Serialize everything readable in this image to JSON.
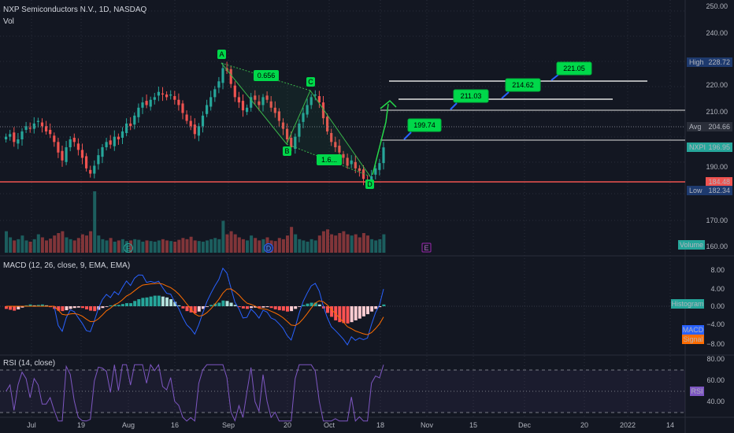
{
  "colors": {
    "bg": "#131722",
    "up": "#26a69a",
    "down": "#ef5350",
    "macd": "#2962ff",
    "signal": "#ff6d00",
    "rsi": "#7e57c2",
    "green_tag": "#00d84a"
  },
  "legend": {
    "title": "NXP Semiconductors N.V., 1D, NASDAQ",
    "vol": "Vol",
    "macd": "MACD (12, 26, close, 9, EMA, EMA)",
    "rsi": "RSI (14, close)"
  },
  "price_axis": {
    "ticks": [
      "250.00",
      "240.00",
      "230.00",
      "220.00",
      "210.00",
      "200.00",
      "190.00",
      "180.00",
      "170.00",
      "160.00"
    ],
    "high_label": "High",
    "high_value": "228.72",
    "avg_label": "Avg",
    "avg_value": "204.66",
    "symbol_label": "NXPI",
    "last_value": "196.95",
    "red_value": "184.48",
    "low_label": "Low",
    "low_value": "182.34",
    "volume_tag": "Volume"
  },
  "macd_axis": {
    "ticks": [
      "8.00",
      "4.00",
      "0.00",
      "−4.00",
      "−8.00"
    ],
    "histogram_tag": "Histogram",
    "macd_tag": "MACD",
    "signal_tag": "Signal"
  },
  "rsi_axis": {
    "ticks": [
      "80.00",
      "60.00",
      "40.00"
    ],
    "rsi_tag": "RSI"
  },
  "time_axis": [
    "Jul",
    "19",
    "Aug",
    "16",
    "Sep",
    "20",
    "Oct",
    "18",
    "Nov",
    "15",
    "Dec",
    "20",
    "2022",
    "14"
  ],
  "pattern": {
    "points": [
      "A",
      "B",
      "C",
      "D"
    ],
    "ratio_ac": "0.656",
    "ratio_bd": "1.6..."
  },
  "targets": [
    "199.74",
    "211.03",
    "214.62",
    "221.05"
  ],
  "event_markers": [
    "E",
    "D",
    "E"
  ],
  "chart_data": {
    "type": "candlestick",
    "symbol": "NXPI",
    "last": 196.95,
    "high": 228.72,
    "low": 182.34,
    "avg": 204.66,
    "key_level": 184.48,
    "harmonic_points": {
      "A": 228.7,
      "B": 197.3,
      "C": 217.8,
      "D": 182.3
    },
    "targets": [
      199.74,
      211.03,
      214.62,
      221.05
    ],
    "closes": [
      201,
      202,
      199,
      200,
      203,
      205,
      204,
      206,
      207,
      205,
      203,
      202,
      199,
      195,
      192,
      197,
      200,
      199,
      196,
      193,
      189,
      187,
      190,
      194,
      197,
      199,
      198,
      201,
      200,
      203,
      206,
      205,
      209,
      212,
      214,
      213,
      215,
      216,
      218,
      217,
      216,
      217,
      215,
      213,
      210,
      207,
      205,
      202,
      205,
      209,
      213,
      216,
      219,
      222,
      227,
      226,
      221,
      216,
      214,
      211,
      212,
      216,
      215,
      213,
      216,
      215,
      212,
      210,
      207,
      204,
      200,
      197,
      201,
      206,
      210,
      213,
      216,
      217,
      214,
      208,
      203,
      199,
      197,
      195,
      193,
      190,
      192,
      189,
      188,
      185,
      183,
      186,
      189,
      191,
      196.95
    ],
    "volume": [
      0.35,
      0.25,
      0.2,
      0.22,
      0.28,
      0.2,
      0.18,
      0.22,
      0.3,
      0.25,
      0.2,
      0.23,
      0.28,
      0.32,
      0.35,
      0.25,
      0.22,
      0.2,
      0.24,
      0.3,
      0.28,
      0.35,
      1.0,
      0.28,
      0.22,
      0.2,
      0.24,
      0.18,
      0.2,
      0.22,
      0.19,
      0.2,
      0.22,
      0.21,
      0.18,
      0.2,
      0.19,
      0.18,
      0.2,
      0.22,
      0.2,
      0.19,
      0.18,
      0.21,
      0.24,
      0.22,
      0.26,
      0.2,
      0.19,
      0.18,
      0.2,
      0.22,
      0.24,
      0.22,
      0.52,
      0.3,
      0.35,
      0.3,
      0.25,
      0.22,
      0.2,
      0.28,
      0.24,
      0.2,
      0.22,
      0.25,
      0.2,
      0.19,
      0.24,
      0.22,
      0.28,
      0.42,
      0.3,
      0.22,
      0.2,
      0.18,
      0.22,
      0.2,
      0.28,
      0.35,
      0.38,
      0.3,
      0.28,
      0.32,
      0.35,
      0.3,
      0.28,
      0.3,
      0.25,
      0.32,
      0.28,
      0.22,
      0.2,
      0.22,
      0.3
    ],
    "macd_hist": [
      -0.6,
      -0.8,
      -1.0,
      -0.7,
      -0.3,
      0.2,
      0.4,
      0.2,
      0.3,
      0.4,
      0.2,
      -0.2,
      -0.6,
      -1.0,
      -1.1,
      -0.9,
      -0.6,
      -0.4,
      -0.3,
      -0.4,
      -0.7,
      -1.0,
      -1.1,
      -0.8,
      -0.4,
      -0.1,
      0.2,
      0.3,
      0.3,
      0.5,
      0.7,
      0.7,
      1.2,
      1.6,
      1.9,
      2.0,
      2.2,
      2.4,
      2.4,
      2.2,
      2.0,
      1.6,
      1.0,
      0.2,
      -0.5,
      -1.1,
      -1.4,
      -1.6,
      -1.2,
      -0.6,
      -0.1,
      0.3,
      0.6,
      0.8,
      1.3,
      1.2,
      0.8,
      0.3,
      -0.2,
      -0.5,
      -0.6,
      -0.4,
      -0.3,
      -0.4,
      -0.3,
      -0.2,
      -0.4,
      -0.7,
      -0.9,
      -1.0,
      -1.2,
      -1.1,
      -0.6,
      -0.1,
      0.3,
      0.6,
      0.8,
      0.8,
      0.4,
      -0.5,
      -1.5,
      -2.4,
      -3.2,
      -3.6,
      -3.8,
      -3.9,
      -3.6,
      -3.2,
      -2.8,
      -2.3,
      -1.8,
      -1.2,
      -0.6,
      -0.2,
      0.4
    ]
  }
}
